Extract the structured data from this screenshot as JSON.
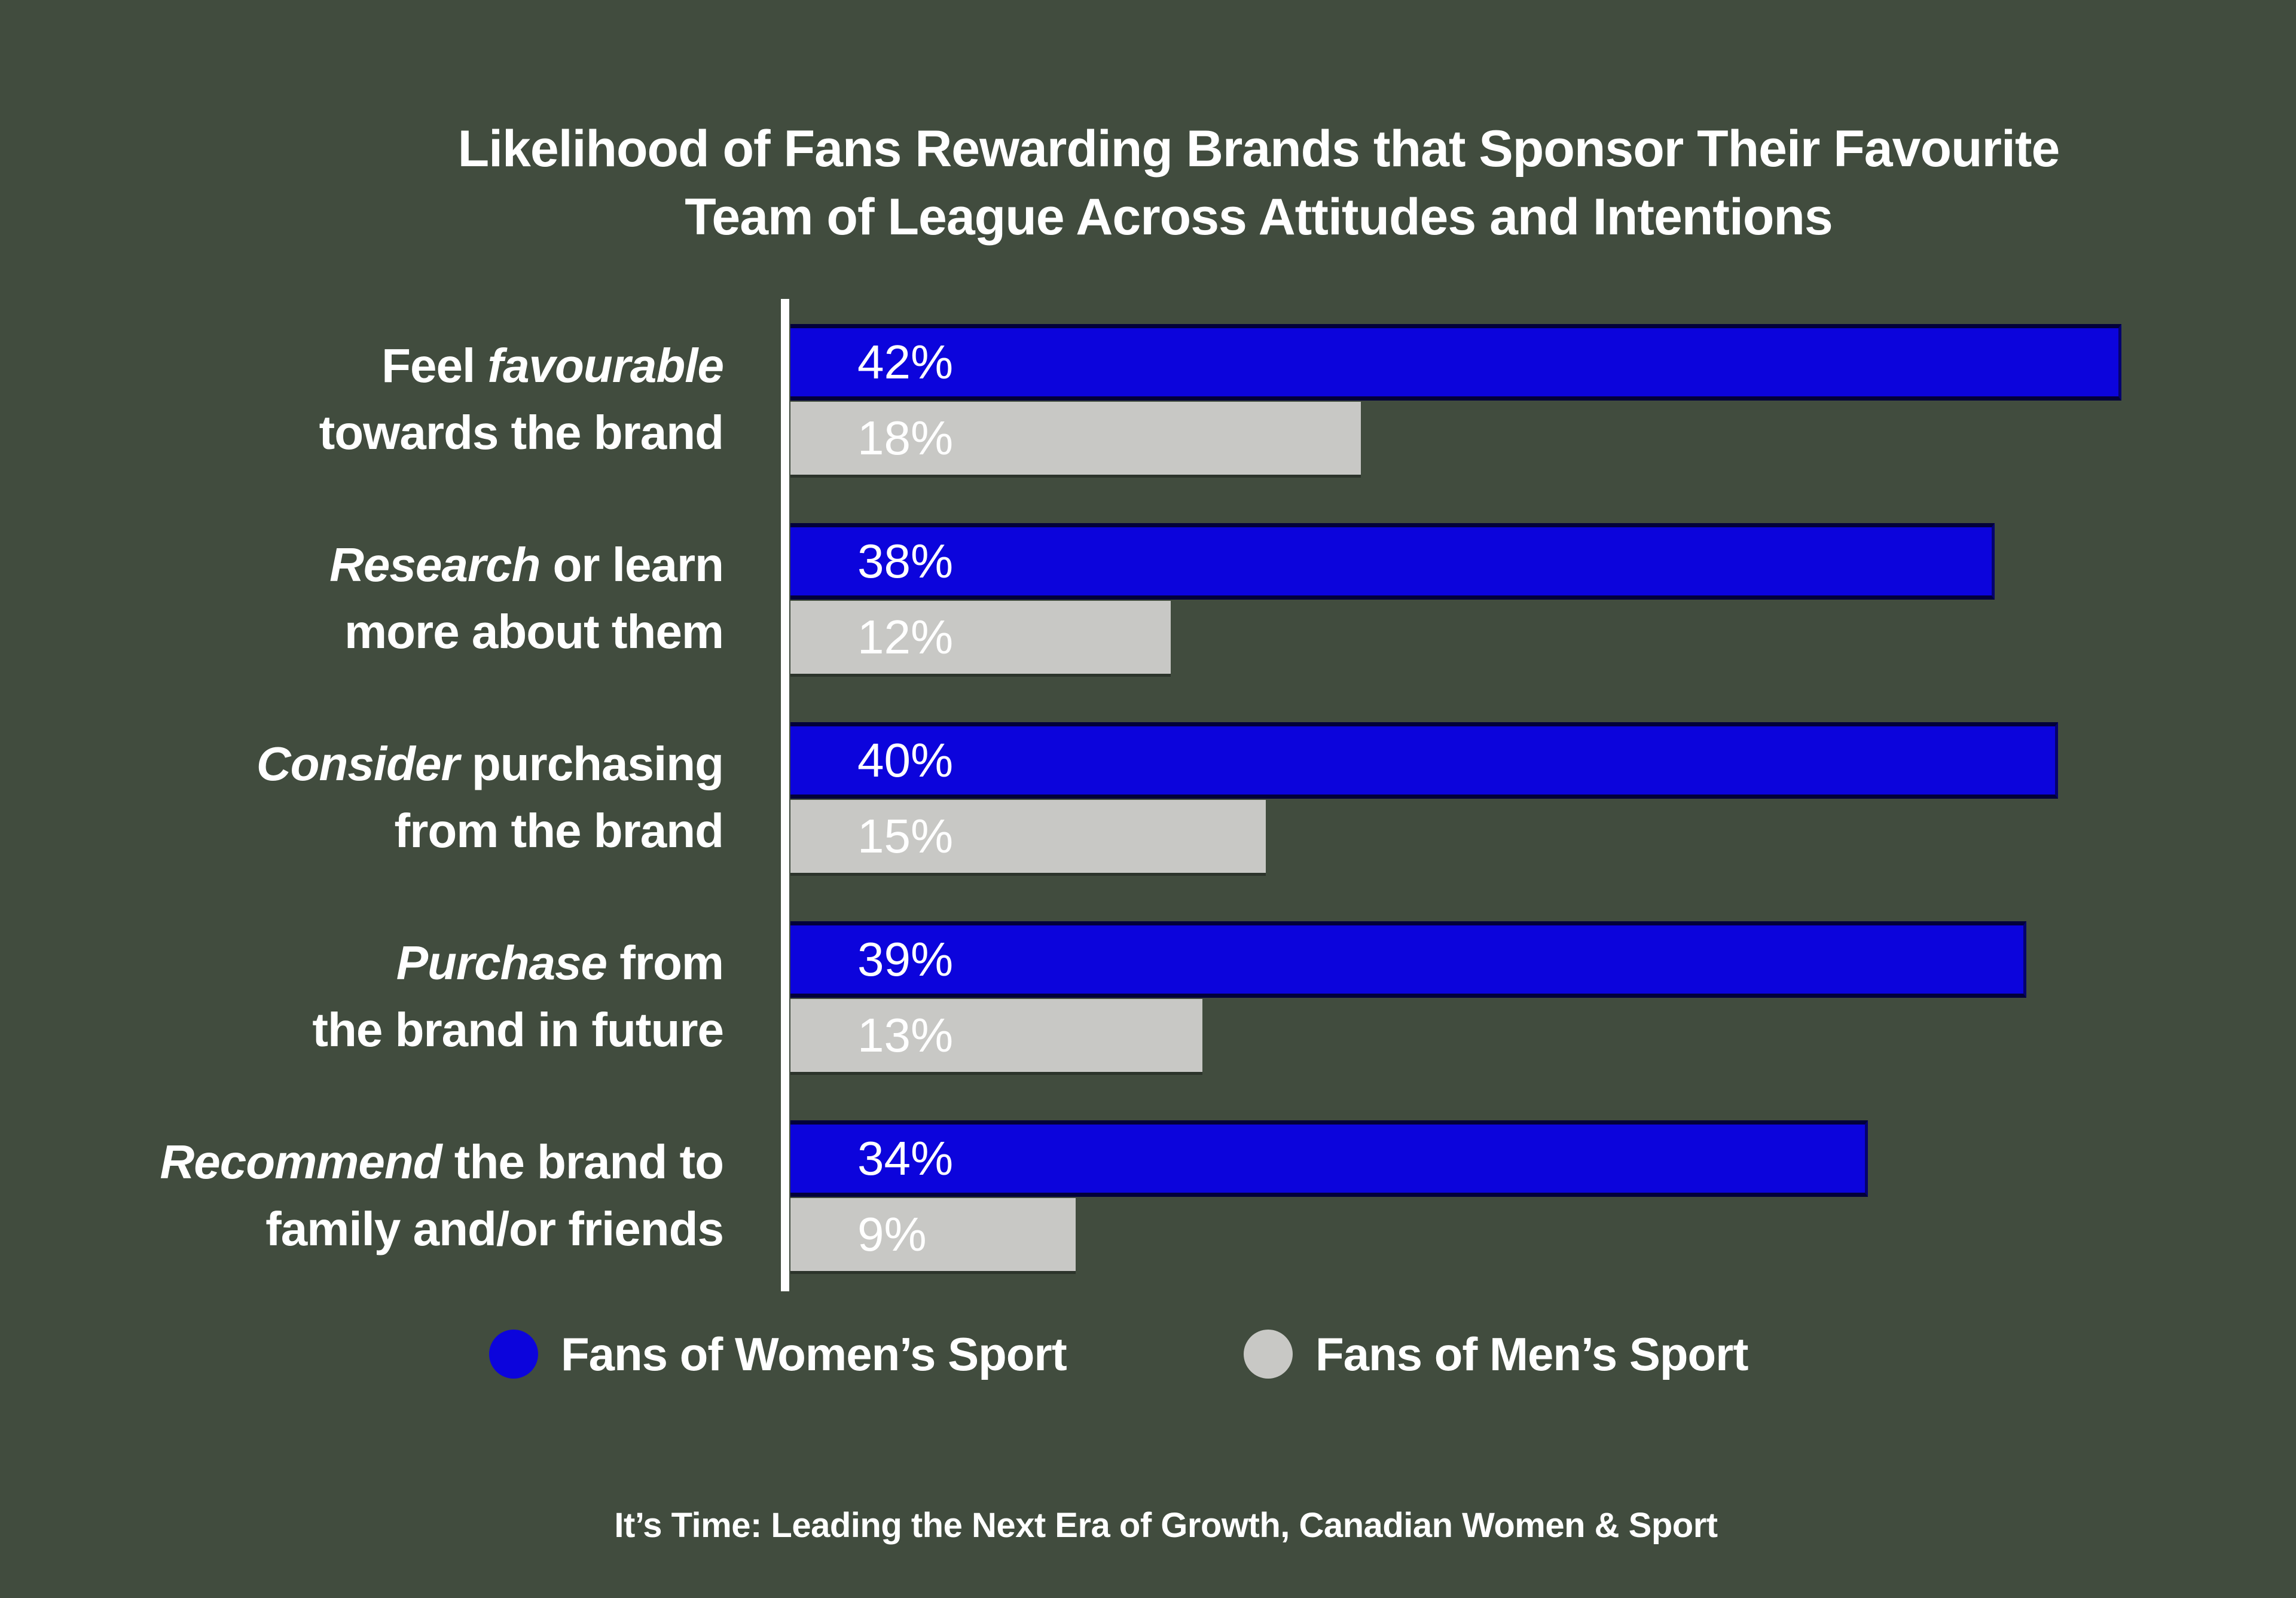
{
  "colors": {
    "background": "#414C3E",
    "women_blue": "#0C04DC",
    "men_gray": "#C8C8C5",
    "text": "#FFFFFF",
    "axis": "#FFFFFF"
  },
  "title": {
    "line1": "Likelihood of Fans Rewarding Brands that Sponsor Their Favourite",
    "line2": "Team of League Across Attitudes and Intentions"
  },
  "chart_data": {
    "type": "bar",
    "orientation": "horizontal",
    "value_suffix": "%",
    "xlim": [
      0,
      47
    ],
    "grid": false,
    "legend_position": "bottom",
    "categories": [
      {
        "lines": [
          [
            {
              "t": "Feel ",
              "i": false
            },
            {
              "t": "favourable",
              "i": true
            }
          ],
          [
            {
              "t": "towards the brand",
              "i": false
            }
          ]
        ]
      },
      {
        "lines": [
          [
            {
              "t": "Research",
              "i": true
            },
            {
              "t": " or learn",
              "i": false
            }
          ],
          [
            {
              "t": "more about them",
              "i": false
            }
          ]
        ]
      },
      {
        "lines": [
          [
            {
              "t": "Consider",
              "i": true
            },
            {
              "t": " purchasing",
              "i": false
            }
          ],
          [
            {
              "t": "from the brand",
              "i": false
            }
          ]
        ]
      },
      {
        "lines": [
          [
            {
              "t": "Purchase",
              "i": true
            },
            {
              "t": " from",
              "i": false
            }
          ],
          [
            {
              "t": "the brand in future",
              "i": false
            }
          ]
        ]
      },
      {
        "lines": [
          [
            {
              "t": "Recommend",
              "i": true
            },
            {
              "t": " the brand to",
              "i": false
            }
          ],
          [
            {
              "t": "family and/or friends",
              "i": false
            }
          ]
        ]
      }
    ],
    "series": [
      {
        "name": "Fans of Women’s Sport",
        "color": "#0C04DC",
        "values": [
          42,
          38,
          40,
          39,
          34
        ]
      },
      {
        "name": "Fans of Men’s Sport",
        "color": "#C8C8C5",
        "values": [
          18,
          12,
          15,
          13,
          9
        ]
      }
    ]
  },
  "legend": [
    {
      "label": "Fans of Women’s Sport"
    },
    {
      "label": "Fans of Men’s Sport"
    }
  ],
  "source": "It’s Time: Leading the Next Era of Growth, Canadian Women & Sport"
}
